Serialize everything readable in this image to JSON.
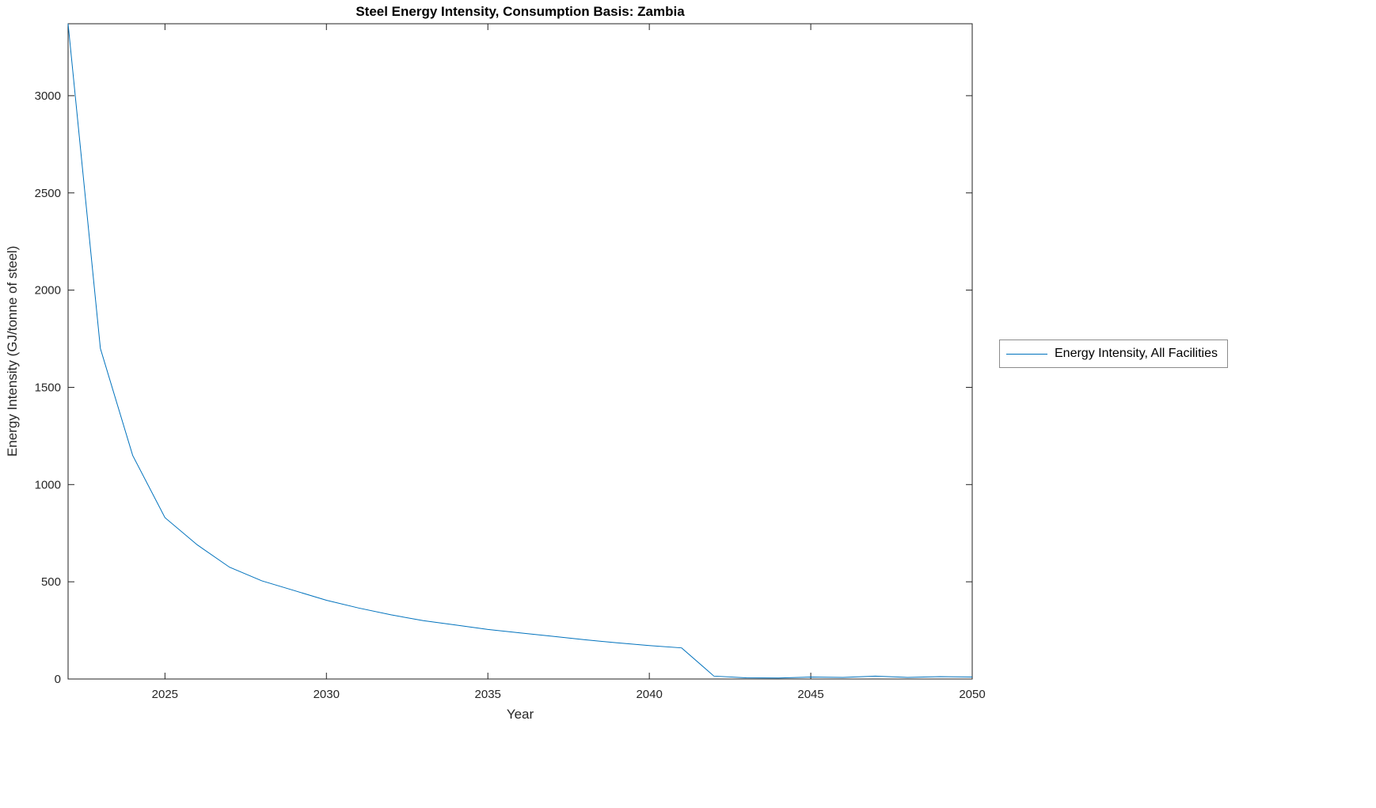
{
  "chart_data": {
    "type": "line",
    "title": "Steel Energy Intensity, Consumption Basis: Zambia",
    "xlabel": "Year",
    "ylabel": "Energy Intensity (GJ/tonne of steel)",
    "xlim": [
      2022,
      2050
    ],
    "ylim": [
      0,
      3370
    ],
    "xticks": [
      2025,
      2030,
      2035,
      2040,
      2045,
      2050
    ],
    "yticks": [
      0,
      500,
      1000,
      1500,
      2000,
      2500,
      3000
    ],
    "grid": false,
    "legend_position": "right-outside",
    "series": [
      {
        "name": "Energy Intensity, All Facilities",
        "color": "#0072BD",
        "x": [
          2022,
          2023,
          2024,
          2025,
          2026,
          2027,
          2028,
          2029,
          2030,
          2031,
          2032,
          2033,
          2034,
          2035,
          2036,
          2037,
          2038,
          2039,
          2040,
          2041,
          2042,
          2043,
          2044,
          2045,
          2046,
          2047,
          2048,
          2049,
          2050
        ],
        "values": [
          3370,
          1700,
          1150,
          830,
          690,
          575,
          505,
          455,
          405,
          365,
          330,
          300,
          278,
          255,
          237,
          220,
          202,
          186,
          172,
          160,
          15,
          6,
          5,
          10,
          8,
          15,
          8,
          12,
          10
        ]
      }
    ]
  }
}
